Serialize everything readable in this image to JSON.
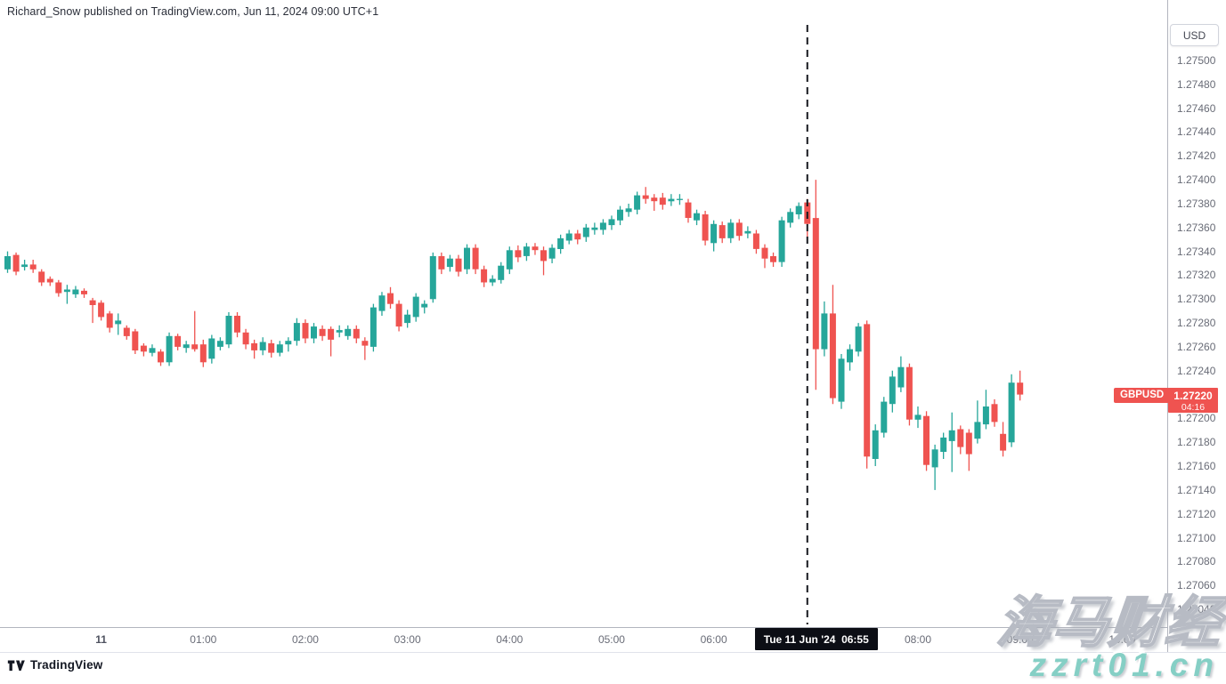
{
  "attribution": "Richard_Snow published on TradingView.com, Jun 11, 2024 09:00 UTC+1",
  "symbol_badge": "GBPUSD",
  "last_price": "1.27220",
  "countdown": "04:16",
  "crosshair_time_label": "Tue 11 Jun '24  06:55",
  "footer": {
    "brand": "TradingView"
  },
  "watermark": {
    "line1": "海马财经",
    "line2": "zzrt01.cn"
  },
  "colors": {
    "up": "#26a69a",
    "down": "#ef5350",
    "badge_red": "#ef5350",
    "event_line": "#16181e",
    "axis_text": "#696c77"
  },
  "price_axis": {
    "currency_label": "USD",
    "ticks": [
      "1.27500",
      "1.27480",
      "1.27460",
      "1.27440",
      "1.27420",
      "1.27400",
      "1.27380",
      "1.27360",
      "1.27340",
      "1.27320",
      "1.27300",
      "1.27280",
      "1.27260",
      "1.27240",
      "1.27200",
      "1.27180",
      "1.27160",
      "1.27140",
      "1.27120",
      "1.27100",
      "1.27080",
      "1.27060",
      "1.27040"
    ]
  },
  "time_axis": {
    "labels": [
      {
        "text": "11",
        "hour": 0,
        "bold": true
      },
      {
        "text": "01:00",
        "hour": 1
      },
      {
        "text": "02:00",
        "hour": 2
      },
      {
        "text": "03:00",
        "hour": 3
      },
      {
        "text": "04:00",
        "hour": 4
      },
      {
        "text": "05:00",
        "hour": 5
      },
      {
        "text": "06:00",
        "hour": 6
      },
      {
        "text": "08:00",
        "hour": 8
      },
      {
        "text": "09:00",
        "hour": 9
      },
      {
        "text": "10:00",
        "hour": 10
      }
    ]
  },
  "chart_data": {
    "type": "candlestick",
    "symbol": "GBPUSD",
    "interval": "5m",
    "date": "Tue 11 Jun '24",
    "event_time": "06:55",
    "ylim": [
      1.2703,
      1.2753
    ],
    "columns": [
      "time",
      "open",
      "high",
      "low",
      "close"
    ],
    "candles": [
      [
        "23:05",
        1.27325,
        1.2734,
        1.27322,
        1.27336
      ],
      [
        "23:10",
        1.27337,
        1.27339,
        1.2732,
        1.27323
      ],
      [
        "23:15",
        1.27327,
        1.27333,
        1.27324,
        1.27329
      ],
      [
        "23:20",
        1.27329,
        1.27333,
        1.27322,
        1.27325
      ],
      [
        "23:25",
        1.27323,
        1.27325,
        1.27311,
        1.27314
      ],
      [
        "23:30",
        1.27317,
        1.27319,
        1.27311,
        1.27314
      ],
      [
        "23:35",
        1.27314,
        1.27316,
        1.27302,
        1.27305
      ],
      [
        "23:40",
        1.27306,
        1.27312,
        1.27296,
        1.27308
      ],
      [
        "23:45",
        1.27304,
        1.27311,
        1.27301,
        1.27308
      ],
      [
        "23:50",
        1.27307,
        1.27309,
        1.27301,
        1.27304
      ],
      [
        "23:55",
        1.27299,
        1.27301,
        1.2728,
        1.27295
      ],
      [
        "00:00",
        1.27297,
        1.27299,
        1.27282,
        1.27285
      ],
      [
        "00:05",
        1.27288,
        1.2729,
        1.27272,
        1.27276
      ],
      [
        "00:10",
        1.27279,
        1.27288,
        1.2727,
        1.27282
      ],
      [
        "00:15",
        1.27276,
        1.27278,
        1.27266,
        1.27269
      ],
      [
        "00:20",
        1.27273,
        1.27275,
        1.27254,
        1.27257
      ],
      [
        "00:25",
        1.27261,
        1.27263,
        1.27252,
        1.27256
      ],
      [
        "00:30",
        1.27255,
        1.27262,
        1.27252,
        1.27259
      ],
      [
        "00:35",
        1.27256,
        1.27258,
        1.27244,
        1.27247
      ],
      [
        "00:40",
        1.27247,
        1.27272,
        1.27244,
        1.27269
      ],
      [
        "00:45",
        1.27269,
        1.27271,
        1.27257,
        1.2726
      ],
      [
        "00:50",
        1.27259,
        1.27265,
        1.27255,
        1.27262
      ],
      [
        "00:55",
        1.27262,
        1.2729,
        1.27256,
        1.27258
      ],
      [
        "01:00",
        1.27262,
        1.27266,
        1.27243,
        1.27247
      ],
      [
        "01:05",
        1.2725,
        1.2727,
        1.27246,
        1.27267
      ],
      [
        "01:10",
        1.2726,
        1.27268,
        1.27257,
        1.27265
      ],
      [
        "01:15",
        1.27262,
        1.27289,
        1.27259,
        1.27286
      ],
      [
        "01:20",
        1.27286,
        1.27289,
        1.27268,
        1.27272
      ],
      [
        "01:25",
        1.27272,
        1.27275,
        1.27258,
        1.27262
      ],
      [
        "01:30",
        1.27263,
        1.27266,
        1.2725,
        1.27257
      ],
      [
        "01:35",
        1.27257,
        1.27268,
        1.27253,
        1.27264
      ],
      [
        "01:40",
        1.27263,
        1.27266,
        1.27251,
        1.27255
      ],
      [
        "01:45",
        1.27255,
        1.27265,
        1.27252,
        1.27262
      ],
      [
        "01:50",
        1.27262,
        1.27268,
        1.27256,
        1.27265
      ],
      [
        "01:55",
        1.27265,
        1.27284,
        1.27261,
        1.2728
      ],
      [
        "02:00",
        1.2728,
        1.27283,
        1.27263,
        1.27267
      ],
      [
        "02:05",
        1.27267,
        1.2728,
        1.27263,
        1.27277
      ],
      [
        "02:10",
        1.27275,
        1.27278,
        1.27265,
        1.27269
      ],
      [
        "02:15",
        1.27275,
        1.27277,
        1.27252,
        1.27266
      ],
      [
        "02:20",
        1.27272,
        1.27278,
        1.27268,
        1.27274
      ],
      [
        "02:25",
        1.27269,
        1.27278,
        1.27266,
        1.27275
      ],
      [
        "02:30",
        1.27275,
        1.27278,
        1.27263,
        1.27267
      ],
      [
        "02:35",
        1.27265,
        1.27268,
        1.27249,
        1.27261
      ],
      [
        "02:40",
        1.2726,
        1.27296,
        1.27256,
        1.27293
      ],
      [
        "02:45",
        1.2729,
        1.27306,
        1.27286,
        1.27303
      ],
      [
        "02:50",
        1.27305,
        1.2731,
        1.27292,
        1.27296
      ],
      [
        "02:55",
        1.27296,
        1.27299,
        1.27273,
        1.27277
      ],
      [
        "03:00",
        1.2728,
        1.27291,
        1.27276,
        1.27287
      ],
      [
        "03:05",
        1.27285,
        1.27305,
        1.27281,
        1.27302
      ],
      [
        "03:10",
        1.27293,
        1.27299,
        1.27288,
        1.27296
      ],
      [
        "03:15",
        1.273,
        1.27339,
        1.27297,
        1.27336
      ],
      [
        "03:20",
        1.27336,
        1.27339,
        1.27321,
        1.27325
      ],
      [
        "03:25",
        1.27327,
        1.27337,
        1.27323,
        1.27334
      ],
      [
        "03:30",
        1.27334,
        1.27337,
        1.27319,
        1.27323
      ],
      [
        "03:35",
        1.27325,
        1.27346,
        1.27321,
        1.27343
      ],
      [
        "03:40",
        1.27343,
        1.27346,
        1.27321,
        1.27325
      ],
      [
        "03:45",
        1.27325,
        1.27328,
        1.2731,
        1.27314
      ],
      [
        "03:50",
        1.27314,
        1.2732,
        1.27311,
        1.27317
      ],
      [
        "03:55",
        1.27316,
        1.27331,
        1.27313,
        1.27328
      ],
      [
        "04:00",
        1.27325,
        1.27344,
        1.27321,
        1.27341
      ],
      [
        "04:05",
        1.27341,
        1.27345,
        1.27331,
        1.27335
      ],
      [
        "04:10",
        1.27336,
        1.27347,
        1.27332,
        1.27344
      ],
      [
        "04:15",
        1.27344,
        1.27347,
        1.27337,
        1.27341
      ],
      [
        "04:20",
        1.27341,
        1.27344,
        1.2732,
        1.27332
      ],
      [
        "04:25",
        1.27334,
        1.27346,
        1.2733,
        1.27343
      ],
      [
        "04:30",
        1.27342,
        1.27354,
        1.27338,
        1.27351
      ],
      [
        "04:35",
        1.27349,
        1.27358,
        1.27346,
        1.27355
      ],
      [
        "04:40",
        1.27355,
        1.27358,
        1.27346,
        1.2735
      ],
      [
        "04:45",
        1.27352,
        1.27363,
        1.27348,
        1.2736
      ],
      [
        "04:50",
        1.27358,
        1.27364,
        1.27354,
        1.2736
      ],
      [
        "04:55",
        1.27358,
        1.27367,
        1.27354,
        1.27364
      ],
      [
        "05:00",
        1.27362,
        1.2737,
        1.27358,
        1.27367
      ],
      [
        "05:05",
        1.27366,
        1.27378,
        1.27362,
        1.27375
      ],
      [
        "05:10",
        1.27373,
        1.2738,
        1.27369,
        1.27376
      ],
      [
        "05:15",
        1.27375,
        1.2739,
        1.27371,
        1.27387
      ],
      [
        "05:20",
        1.27387,
        1.27394,
        1.2738,
        1.27384
      ],
      [
        "05:25",
        1.27385,
        1.27388,
        1.27374,
        1.27382
      ],
      [
        "05:30",
        1.27385,
        1.27389,
        1.27375,
        1.27379
      ],
      [
        "05:35",
        1.27382,
        1.27388,
        1.27378,
        1.27384
      ],
      [
        "05:40",
        1.27383,
        1.27388,
        1.27379,
        1.27384
      ],
      [
        "05:45",
        1.27381,
        1.27384,
        1.27364,
        1.27368
      ],
      [
        "05:50",
        1.27366,
        1.27375,
        1.27362,
        1.27372
      ],
      [
        "05:55",
        1.27371,
        1.27374,
        1.27345,
        1.27349
      ],
      [
        "06:00",
        1.27347,
        1.27366,
        1.2734,
        1.27363
      ],
      [
        "06:05",
        1.27362,
        1.27365,
        1.27347,
        1.27351
      ],
      [
        "06:10",
        1.27351,
        1.27367,
        1.27347,
        1.27364
      ],
      [
        "06:15",
        1.27364,
        1.27367,
        1.27349,
        1.27353
      ],
      [
        "06:20",
        1.27355,
        1.27361,
        1.27351,
        1.27357
      ],
      [
        "06:25",
        1.27355,
        1.27358,
        1.27338,
        1.27342
      ],
      [
        "06:30",
        1.27343,
        1.27346,
        1.27326,
        1.27334
      ],
      [
        "06:35",
        1.27336,
        1.27339,
        1.27327,
        1.27331
      ],
      [
        "06:40",
        1.27331,
        1.27369,
        1.27327,
        1.27366
      ],
      [
        "06:45",
        1.27364,
        1.27376,
        1.2736,
        1.27373
      ],
      [
        "06:50",
        1.27371,
        1.27381,
        1.27367,
        1.27378
      ],
      [
        "06:55",
        1.27381,
        1.27384,
        1.2735,
        1.27363
      ],
      [
        "07:00",
        1.27368,
        1.274,
        1.27224,
        1.27258
      ],
      [
        "07:05",
        1.27258,
        1.27298,
        1.27252,
        1.27288
      ],
      [
        "07:10",
        1.27288,
        1.27312,
        1.27212,
        1.27217
      ],
      [
        "07:15",
        1.27214,
        1.27254,
        1.27208,
        1.2725
      ],
      [
        "07:20",
        1.27247,
        1.27262,
        1.2724,
        1.27258
      ],
      [
        "07:25",
        1.27256,
        1.2728,
        1.27252,
        1.27277
      ],
      [
        "07:30",
        1.27279,
        1.27282,
        1.27158,
        1.27168
      ],
      [
        "07:35",
        1.27166,
        1.27195,
        1.2716,
        1.2719
      ],
      [
        "07:40",
        1.27188,
        1.27218,
        1.27184,
        1.27214
      ],
      [
        "07:45",
        1.27212,
        1.2724,
        1.27205,
        1.27235
      ],
      [
        "07:50",
        1.27226,
        1.27252,
        1.27222,
        1.27243
      ],
      [
        "07:55",
        1.27243,
        1.27246,
        1.27194,
        1.27199
      ],
      [
        "08:00",
        1.27199,
        1.2721,
        1.27192,
        1.27203
      ],
      [
        "08:05",
        1.27202,
        1.27206,
        1.27156,
        1.27161
      ],
      [
        "08:10",
        1.27159,
        1.27178,
        1.2714,
        1.27174
      ],
      [
        "08:15",
        1.27172,
        1.27188,
        1.27166,
        1.27184
      ],
      [
        "08:20",
        1.27181,
        1.27205,
        1.27155,
        1.2719
      ],
      [
        "08:25",
        1.27191,
        1.27194,
        1.2717,
        1.27176
      ],
      [
        "08:30",
        1.27188,
        1.27191,
        1.27156,
        1.2717
      ],
      [
        "08:35",
        1.27183,
        1.27215,
        1.27179,
        1.27197
      ],
      [
        "08:40",
        1.27195,
        1.27224,
        1.27191,
        1.2721
      ],
      [
        "08:45",
        1.27212,
        1.27216,
        1.27193,
        1.27197
      ],
      [
        "08:50",
        1.27187,
        1.27197,
        1.27168,
        1.27173
      ],
      [
        "08:55",
        1.2718,
        1.27237,
        1.27176,
        1.2723
      ],
      [
        "09:00",
        1.2723,
        1.2724,
        1.27215,
        1.2722
      ]
    ]
  }
}
